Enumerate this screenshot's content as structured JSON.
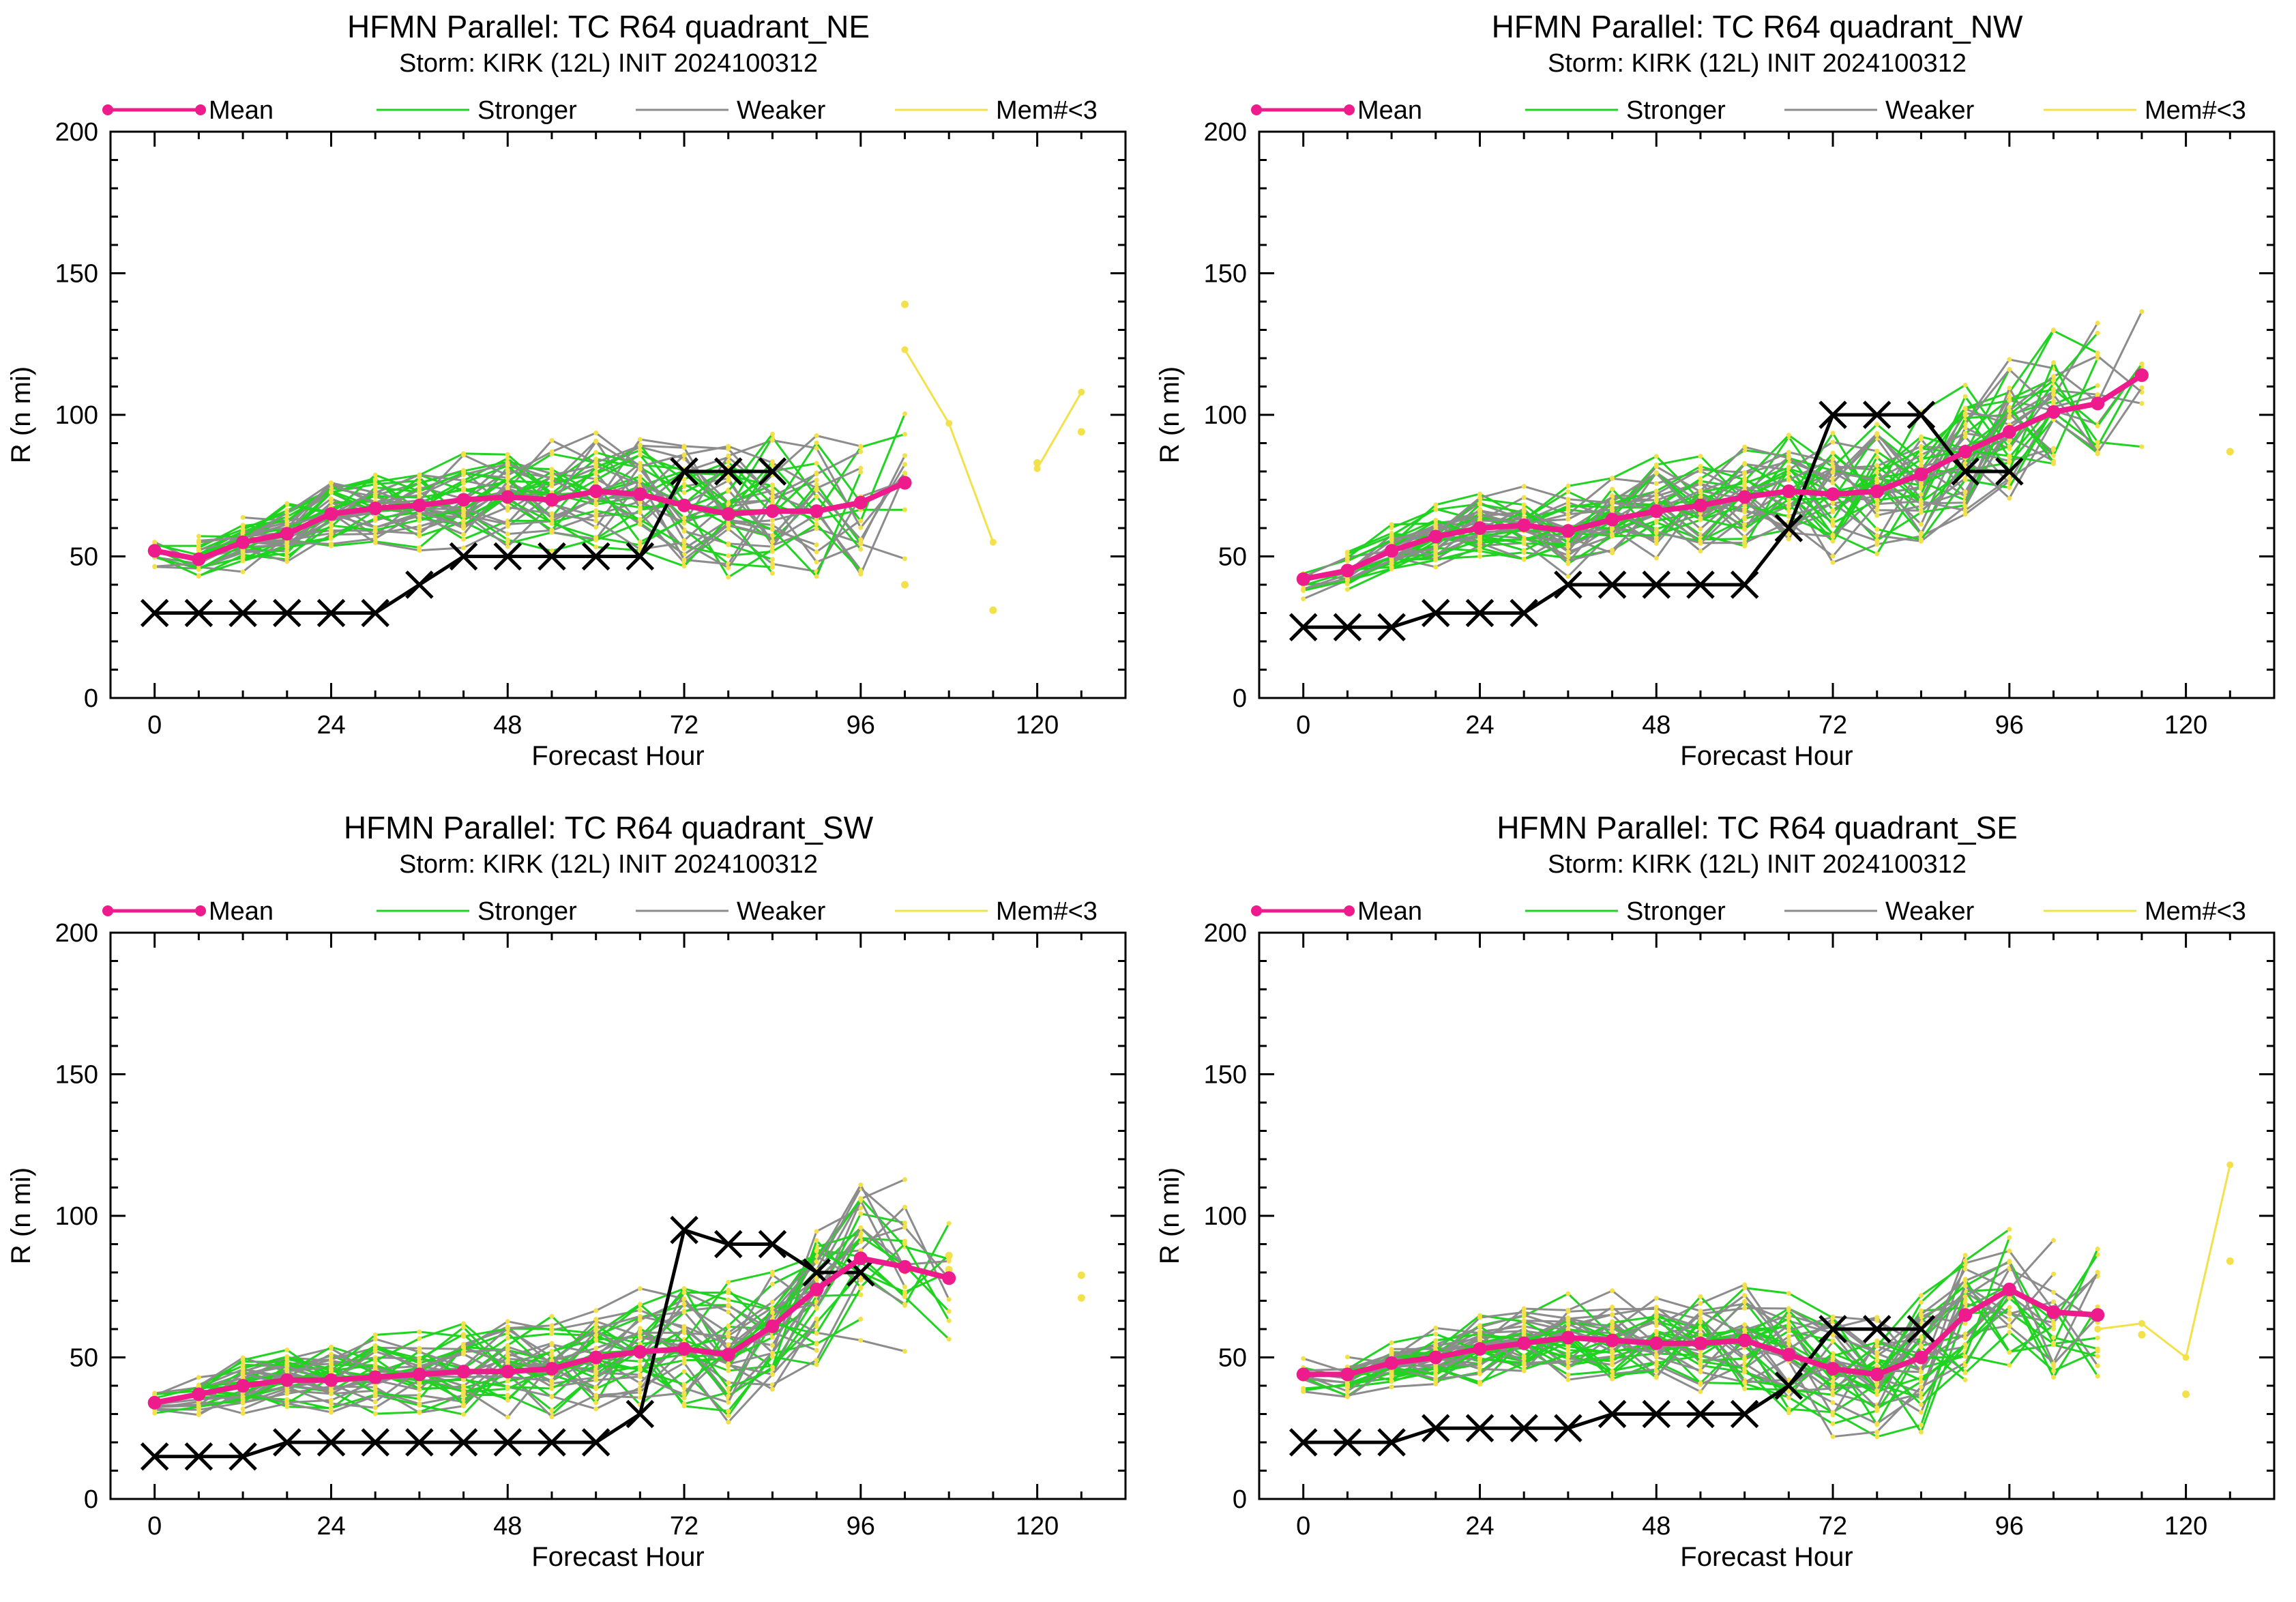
{
  "legend_items": [
    {
      "label": "Mean",
      "color": "#ee1b8c",
      "marker": "dot",
      "weight": "thick"
    },
    {
      "label": "Stronger",
      "color": "#21d321",
      "marker": "none",
      "weight": "thin"
    },
    {
      "label": "Weaker",
      "color": "#8c8c8c",
      "marker": "none",
      "weight": "thin"
    },
    {
      "label": "Mem#<3",
      "color": "#f2e14a",
      "marker": "none",
      "weight": "thin"
    }
  ],
  "chart_data": [
    {
      "type": "line",
      "title": "HFMN Parallel: TC  R64 quadrant_NE",
      "subtitle": "Storm: KIRK (12L) INIT 2024100312",
      "xlabel": "Forecast Hour",
      "ylabel": "R (n mi)",
      "xlim": [
        -6,
        132
      ],
      "ylim": [
        0,
        200
      ],
      "xticks": [
        0,
        24,
        48,
        72,
        96,
        120
      ],
      "yticks": [
        0,
        50,
        100,
        150,
        200
      ],
      "grid": false,
      "legend_position": "top",
      "series": [
        {
          "name": "Mean",
          "role": "mean",
          "x": [
            0,
            6,
            12,
            18,
            24,
            30,
            36,
            42,
            48,
            54,
            60,
            66,
            72,
            78,
            84,
            90,
            96,
            102
          ],
          "y": [
            52,
            49,
            55,
            58,
            65,
            67,
            68,
            70,
            71,
            70,
            73,
            72,
            68,
            65,
            66,
            66,
            69,
            76
          ]
        },
        {
          "role": "observed",
          "x": [
            0,
            6,
            12,
            18,
            24,
            30,
            36,
            42,
            48,
            54,
            60,
            66,
            72,
            78,
            84
          ],
          "y": [
            30,
            30,
            30,
            30,
            30,
            30,
            40,
            50,
            50,
            50,
            50,
            50,
            80,
            80,
            80
          ]
        },
        {
          "name": "Mem#<3",
          "role": "sparse",
          "x": [
            102,
            108,
            114
          ],
          "y": [
            123,
            97,
            55
          ]
        },
        {
          "name": "Mem#<3",
          "role": "sparse",
          "x": [
            120,
            126
          ],
          "y": [
            81,
            108
          ]
        },
        {
          "name": "Mem#<3",
          "role": "sparse-points",
          "x": [
            102,
            102,
            114,
            120,
            126
          ],
          "y": [
            139,
            40,
            31,
            83,
            94
          ]
        }
      ]
    },
    {
      "type": "line",
      "title": "HFMN Parallel: TC  R64 quadrant_NW",
      "subtitle": "Storm: KIRK (12L) INIT 2024100312",
      "xlabel": "Forecast Hour",
      "ylabel": "R (n mi)",
      "xlim": [
        -6,
        132
      ],
      "ylim": [
        0,
        200
      ],
      "xticks": [
        0,
        24,
        48,
        72,
        96,
        120
      ],
      "yticks": [
        0,
        50,
        100,
        150,
        200
      ],
      "grid": false,
      "legend_position": "top",
      "series": [
        {
          "name": "Mean",
          "role": "mean",
          "x": [
            0,
            6,
            12,
            18,
            24,
            30,
            36,
            42,
            48,
            54,
            60,
            66,
            72,
            78,
            84,
            90,
            96,
            102,
            108,
            114
          ],
          "y": [
            42,
            45,
            52,
            57,
            60,
            61,
            59,
            63,
            66,
            68,
            71,
            73,
            72,
            73,
            79,
            87,
            94,
            101,
            104,
            114
          ]
        },
        {
          "role": "observed",
          "x": [
            0,
            6,
            12,
            18,
            24,
            30,
            36,
            42,
            48,
            54,
            60,
            66,
            72,
            78,
            84,
            90,
            96
          ],
          "y": [
            25,
            25,
            25,
            30,
            30,
            30,
            40,
            40,
            40,
            40,
            40,
            60,
            100,
            100,
            100,
            80,
            80
          ]
        },
        {
          "name": "Mem#<3",
          "role": "sparse-points",
          "x": [
            126
          ],
          "y": [
            87
          ]
        }
      ]
    },
    {
      "type": "line",
      "title": "HFMN Parallel: TC  R64 quadrant_SW",
      "subtitle": "Storm: KIRK (12L) INIT 2024100312",
      "xlabel": "Forecast Hour",
      "ylabel": "R (n mi)",
      "xlim": [
        -6,
        132
      ],
      "ylim": [
        0,
        200
      ],
      "xticks": [
        0,
        24,
        48,
        72,
        96,
        120
      ],
      "yticks": [
        0,
        50,
        100,
        150,
        200
      ],
      "grid": false,
      "legend_position": "top",
      "series": [
        {
          "name": "Mean",
          "role": "mean",
          "x": [
            0,
            6,
            12,
            18,
            24,
            30,
            36,
            42,
            48,
            54,
            60,
            66,
            72,
            78,
            84,
            90,
            96,
            102,
            108
          ],
          "y": [
            34,
            37,
            40,
            42,
            42,
            43,
            44,
            45,
            45,
            46,
            50,
            52,
            53,
            51,
            61,
            74,
            85,
            82,
            78
          ]
        },
        {
          "role": "observed",
          "x": [
            0,
            6,
            12,
            18,
            24,
            30,
            36,
            42,
            48,
            54,
            60,
            66,
            72,
            78,
            84,
            90,
            96
          ],
          "y": [
            15,
            15,
            15,
            20,
            20,
            20,
            20,
            20,
            20,
            20,
            20,
            30,
            95,
            90,
            90,
            80,
            80
          ]
        },
        {
          "name": "Mem#<3",
          "role": "sparse-points",
          "x": [
            108,
            108,
            126,
            126
          ],
          "y": [
            86,
            81,
            79,
            71
          ]
        }
      ]
    },
    {
      "type": "line",
      "title": "HFMN Parallel: TC  R64 quadrant_SE",
      "subtitle": "Storm: KIRK (12L) INIT 2024100312",
      "xlabel": "Forecast Hour",
      "ylabel": "R (n mi)",
      "xlim": [
        -6,
        132
      ],
      "ylim": [
        0,
        200
      ],
      "xticks": [
        0,
        24,
        48,
        72,
        96,
        120
      ],
      "yticks": [
        0,
        50,
        100,
        150,
        200
      ],
      "grid": false,
      "legend_position": "top",
      "series": [
        {
          "name": "Mean",
          "role": "mean",
          "x": [
            0,
            6,
            12,
            18,
            24,
            30,
            36,
            42,
            48,
            54,
            60,
            66,
            72,
            78,
            84,
            90,
            96,
            102,
            108
          ],
          "y": [
            44,
            44,
            48,
            50,
            53,
            55,
            57,
            56,
            55,
            55,
            56,
            51,
            46,
            44,
            50,
            65,
            74,
            66,
            65
          ]
        },
        {
          "role": "observed",
          "x": [
            0,
            6,
            12,
            18,
            24,
            30,
            36,
            42,
            48,
            54,
            60,
            66,
            72,
            78,
            84
          ],
          "y": [
            20,
            20,
            20,
            25,
            25,
            25,
            25,
            30,
            30,
            30,
            30,
            40,
            60,
            60,
            60
          ]
        },
        {
          "name": "Mem#<3",
          "role": "sparse",
          "x": [
            108,
            114,
            120,
            126
          ],
          "y": [
            60,
            62,
            50,
            118
          ]
        },
        {
          "name": "Mem#<3",
          "role": "sparse-points",
          "x": [
            114,
            120,
            126
          ],
          "y": [
            58,
            37,
            84
          ]
        }
      ]
    }
  ]
}
